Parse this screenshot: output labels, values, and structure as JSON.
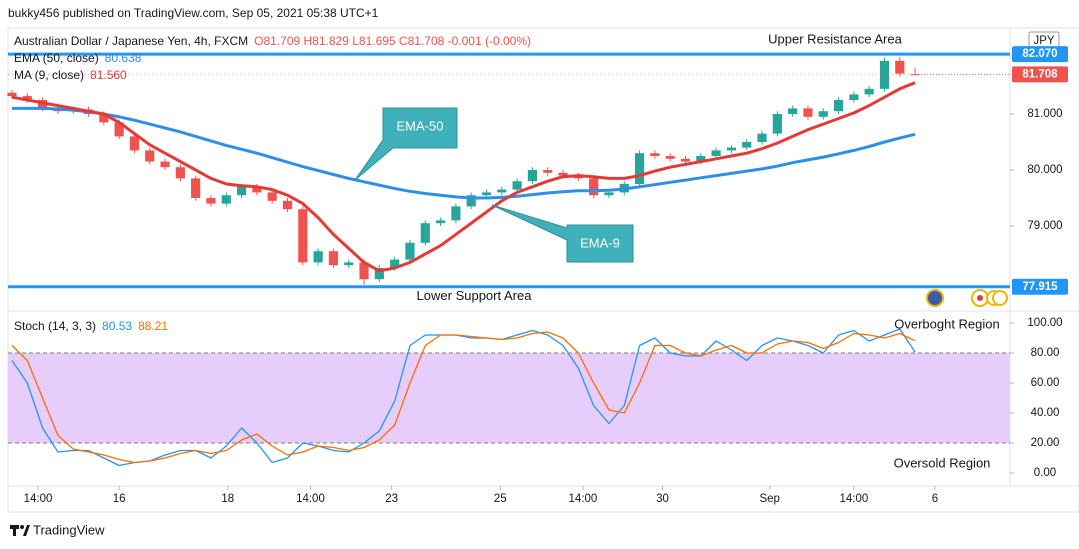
{
  "header": {
    "published": "bukky456 published on TradingView.com, Sep 05, 2021 05:38 UTC+1",
    "currency": "JPY",
    "footer": "TradingView"
  },
  "chart_data": [
    {
      "type": "candlestick",
      "title": "Australian Dollar / Japanese Yen, 4h, FXCM",
      "quote": "O81.709 H81.829 L81.695 C81.708 -0.001 (-0.00%)",
      "up_color": "#26a69a",
      "down_color": "#ef5350",
      "xlim": [
        -0.26,
        65.2
      ],
      "ylim": [
        77.5,
        82.5
      ],
      "yticks": [
        {
          "value": 79,
          "label": "79.000"
        },
        {
          "value": 80,
          "label": "80.000"
        },
        {
          "value": 81,
          "label": "81.000"
        }
      ],
      "candles": {
        "open": [
          81.38,
          81.32,
          81.25,
          81.1,
          81.05,
          81.08,
          81.0,
          80.85,
          80.6,
          80.35,
          80.15,
          80.05,
          79.85,
          79.5,
          79.4,
          79.55,
          79.7,
          79.6,
          79.45,
          79.3,
          78.35,
          78.55,
          78.3,
          78.35,
          78.05,
          78.25,
          78.4,
          78.7,
          79.05,
          79.1,
          79.35,
          79.55,
          79.6,
          79.65,
          79.8,
          80.0,
          79.95,
          79.9,
          79.85,
          79.55,
          79.6,
          79.75,
          80.3,
          80.25,
          80.2,
          80.15,
          80.25,
          80.35,
          80.4,
          80.5,
          80.65,
          81.0,
          81.1,
          80.95,
          81.05,
          81.25,
          81.35,
          81.45,
          81.95,
          81.709
        ],
        "high": [
          81.43,
          81.37,
          81.3,
          81.15,
          81.13,
          81.13,
          81.05,
          80.9,
          80.65,
          80.4,
          80.2,
          80.1,
          79.9,
          79.55,
          79.6,
          79.75,
          79.75,
          79.65,
          79.5,
          79.35,
          78.6,
          78.6,
          78.4,
          78.4,
          78.3,
          78.45,
          78.75,
          79.1,
          79.15,
          79.4,
          79.6,
          79.65,
          79.7,
          79.85,
          80.05,
          80.05,
          80.0,
          79.95,
          79.9,
          79.65,
          79.8,
          80.35,
          80.35,
          80.3,
          80.25,
          80.3,
          80.4,
          80.45,
          80.55,
          80.7,
          81.05,
          81.15,
          81.15,
          81.1,
          81.3,
          81.4,
          81.5,
          82.0,
          82.02,
          81.829
        ],
        "low": [
          81.27,
          81.2,
          81.05,
          81.0,
          81.0,
          80.95,
          80.8,
          80.55,
          80.3,
          80.1,
          80.0,
          79.8,
          79.45,
          79.35,
          79.35,
          79.5,
          79.55,
          79.4,
          79.25,
          78.3,
          78.3,
          78.25,
          78.25,
          77.95,
          78.0,
          78.2,
          78.35,
          78.65,
          79.0,
          79.05,
          79.3,
          79.5,
          79.55,
          79.6,
          79.75,
          79.9,
          79.85,
          79.8,
          79.5,
          79.5,
          79.55,
          79.7,
          80.2,
          80.15,
          80.1,
          80.1,
          80.2,
          80.3,
          80.35,
          80.45,
          80.6,
          80.95,
          80.9,
          80.9,
          81.0,
          81.2,
          81.3,
          81.4,
          81.67,
          81.695
        ],
        "close": [
          81.32,
          81.25,
          81.1,
          81.05,
          81.08,
          81.0,
          80.85,
          80.6,
          80.35,
          80.15,
          80.05,
          79.85,
          79.5,
          79.4,
          79.55,
          79.7,
          79.6,
          79.45,
          79.3,
          78.35,
          78.55,
          78.3,
          78.35,
          78.05,
          78.25,
          78.4,
          78.7,
          79.05,
          79.1,
          79.35,
          79.55,
          79.6,
          79.65,
          79.8,
          80.0,
          79.95,
          79.9,
          79.85,
          79.55,
          79.6,
          79.75,
          80.3,
          80.25,
          80.2,
          80.15,
          80.25,
          80.35,
          80.4,
          80.5,
          80.65,
          81.0,
          81.1,
          80.95,
          81.05,
          81.25,
          81.35,
          81.45,
          81.95,
          81.72,
          81.708
        ]
      },
      "series": [
        {
          "name": "EMA (50, close)",
          "value_label": "80.638",
          "color": "#2f8fe6",
          "values": [
            81.1,
            81.1,
            81.1,
            81.09,
            81.07,
            81.04,
            81.0,
            80.95,
            80.89,
            80.82,
            80.75,
            80.68,
            80.6,
            80.52,
            80.44,
            80.37,
            80.3,
            80.22,
            80.14,
            80.06,
            79.99,
            79.92,
            79.85,
            79.79,
            79.73,
            79.67,
            79.62,
            79.58,
            79.55,
            79.52,
            79.5,
            79.5,
            79.51,
            79.53,
            79.56,
            79.59,
            79.61,
            79.63,
            79.63,
            79.64,
            79.66,
            79.7,
            79.74,
            79.78,
            79.82,
            79.86,
            79.9,
            79.94,
            79.98,
            80.02,
            80.07,
            80.13,
            80.18,
            80.23,
            80.29,
            80.35,
            80.42,
            80.5,
            80.57,
            80.638
          ]
        },
        {
          "name": "MA (9, close)",
          "value_label": "81.560",
          "color": "#e53935",
          "values": [
            81.3,
            81.25,
            81.2,
            81.15,
            81.1,
            81.05,
            81.0,
            80.85,
            80.65,
            80.45,
            80.3,
            80.15,
            80.0,
            79.85,
            79.75,
            79.72,
            79.7,
            79.65,
            79.55,
            79.4,
            79.15,
            78.85,
            78.6,
            78.35,
            78.2,
            78.25,
            78.35,
            78.5,
            78.65,
            78.85,
            79.05,
            79.25,
            79.45,
            79.6,
            79.7,
            79.8,
            79.88,
            79.9,
            79.88,
            79.85,
            79.85,
            79.9,
            79.98,
            80.05,
            80.1,
            80.15,
            80.2,
            80.25,
            80.3,
            80.38,
            80.48,
            80.6,
            80.72,
            80.82,
            80.92,
            81.02,
            81.15,
            81.3,
            81.45,
            81.56
          ]
        }
      ],
      "levels": [
        {
          "name": "Upper Resistance Area",
          "value": 82.07,
          "label": "82.070",
          "color": "#2196f3"
        },
        {
          "name": "Lower Support Area",
          "value": 77.915,
          "label": "77.915",
          "color": "#2196f3"
        }
      ],
      "last_price": {
        "value": 81.708,
        "label": "81.708",
        "color": "#ef5350"
      },
      "annotations": [
        "EMA-50",
        "EMA-9"
      ]
    },
    {
      "type": "line",
      "title": "Stoch (14, 3, 3)",
      "xlim": [
        -0.26,
        65.2
      ],
      "ylim": [
        -8,
        107.33
      ],
      "band": [
        20,
        80
      ],
      "band_color": "#e7cdfb",
      "yticks": [
        {
          "value": 0,
          "label": "0.00"
        },
        {
          "value": 20,
          "label": "20.00"
        },
        {
          "value": 40,
          "label": "40.00"
        },
        {
          "value": 60,
          "label": "60.00"
        },
        {
          "value": 80,
          "label": "80.00"
        },
        {
          "value": 100,
          "label": "100.00"
        }
      ],
      "xticks": [
        {
          "value": 1.7,
          "label": "14:00"
        },
        {
          "value": 7.0,
          "label": "16"
        },
        {
          "value": 14.1,
          "label": "18"
        },
        {
          "value": 19.5,
          "label": "14:00"
        },
        {
          "value": 24.8,
          "label": "23"
        },
        {
          "value": 31.9,
          "label": "25"
        },
        {
          "value": 37.3,
          "label": "14:00"
        },
        {
          "value": 42.5,
          "label": "30"
        },
        {
          "value": 49.5,
          "label": "Sep"
        },
        {
          "value": 55.0,
          "label": "14:00"
        },
        {
          "value": 60.3,
          "label": "6"
        }
      ],
      "series": [
        {
          "value_label": "80.53",
          "color": "#2196f3",
          "values": [
            75,
            60,
            30,
            14,
            15,
            15,
            10,
            5,
            7,
            8,
            12,
            15,
            15,
            10,
            18,
            30,
            20,
            7,
            10,
            20,
            18,
            15,
            14,
            20,
            28,
            48,
            85,
            92,
            92,
            92,
            90,
            90,
            89,
            92,
            95,
            92,
            85,
            70,
            45,
            33,
            45,
            85,
            90,
            80,
            78,
            78,
            88,
            82,
            75,
            85,
            90,
            88,
            85,
            80,
            92,
            95,
            88,
            92,
            96,
            80.53
          ]
        },
        {
          "value_label": "88.21",
          "color": "#ff6d00",
          "values": [
            85,
            75,
            50,
            25,
            16,
            14,
            12,
            9,
            7,
            8,
            10,
            13,
            15,
            13,
            15,
            22,
            26,
            18,
            12,
            14,
            18,
            17,
            15,
            17,
            22,
            32,
            60,
            85,
            92,
            92,
            91,
            90,
            89,
            90,
            93,
            94,
            90,
            80,
            60,
            42,
            40,
            60,
            85,
            85,
            80,
            78,
            82,
            85,
            80,
            80,
            86,
            88,
            87,
            83,
            87,
            93,
            92,
            90,
            93,
            88.21
          ]
        }
      ],
      "annotations": [
        "Overboght Region",
        "Oversold Region"
      ]
    }
  ]
}
